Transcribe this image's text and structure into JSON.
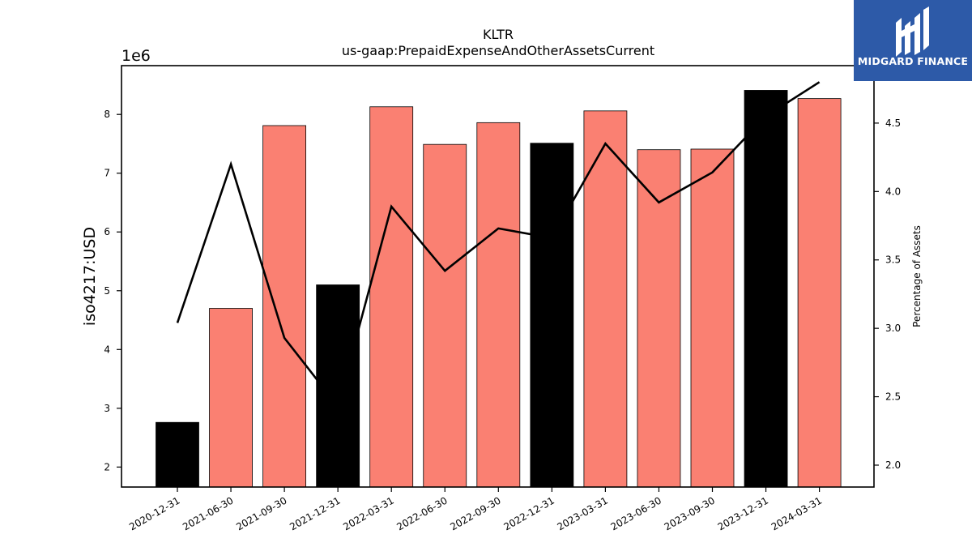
{
  "chart_data": {
    "type": "bar",
    "title": "KLTR",
    "subtitle": "us-gaap:PrepaidExpenseAndOtherAssetsCurrent",
    "ylabel": "iso4217:USD",
    "y_offset_label": "1e6",
    "y2label": "Percentage of Assets",
    "categories": [
      "2020-12-31",
      "2021-06-30",
      "2021-09-30",
      "2021-12-31",
      "2022-03-31",
      "2022-06-30",
      "2022-09-30",
      "2022-12-31",
      "2023-03-31",
      "2023-06-30",
      "2023-09-30",
      "2023-12-31",
      "2024-03-31"
    ],
    "values": [
      2.76,
      4.7,
      7.81,
      5.1,
      8.13,
      7.49,
      7.86,
      7.51,
      8.06,
      7.4,
      7.41,
      8.41,
      8.27
    ],
    "bar_colors": [
      "#000000",
      "#fa8072",
      "#fa8072",
      "#000000",
      "#fa8072",
      "#fa8072",
      "#fa8072",
      "#000000",
      "#fa8072",
      "#fa8072",
      "#fa8072",
      "#000000",
      "#fa8072"
    ],
    "line_values": [
      3.04,
      4.2,
      2.93,
      2.43,
      3.89,
      3.42,
      3.73,
      3.66,
      4.35,
      3.92,
      4.14,
      4.55,
      4.8
    ],
    "line_color": "#000000",
    "ylim": [
      1.66,
      8.83
    ],
    "yticks": [
      2,
      3,
      4,
      5,
      6,
      7,
      8
    ],
    "y2lim": [
      1.84,
      4.92
    ],
    "y2ticks": [
      "2.0",
      "2.5",
      "3.0",
      "3.5",
      "4.0",
      "4.5"
    ],
    "grid": false
  },
  "logo": {
    "text": "MIDGARD FINANCE",
    "background": "#2d5aa8"
  }
}
